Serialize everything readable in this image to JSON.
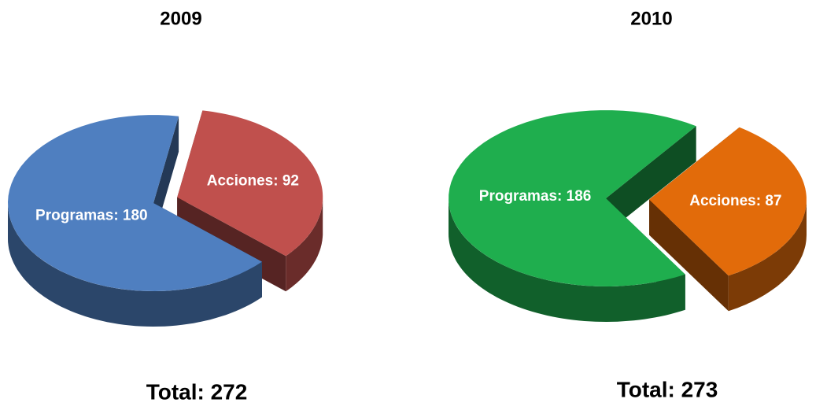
{
  "chart_data": [
    {
      "type": "pie",
      "title": "2009",
      "categories": [
        "Programas",
        "Acciones"
      ],
      "values": [
        180,
        92
      ],
      "value_labels": [
        "Programas: 180",
        "Acciones: 92"
      ],
      "colors": [
        "#4f7fc0",
        "#c0504d"
      ],
      "annotation": "Total: 272"
    },
    {
      "type": "pie",
      "title": "2010",
      "categories": [
        "Programas",
        "Acciones"
      ],
      "values": [
        186,
        87
      ],
      "value_labels": [
        "Programas: 186",
        "Acciones: 87"
      ],
      "colors": [
        "#1fae4e",
        "#e26b0a"
      ],
      "annotation": "Total: 273"
    }
  ]
}
